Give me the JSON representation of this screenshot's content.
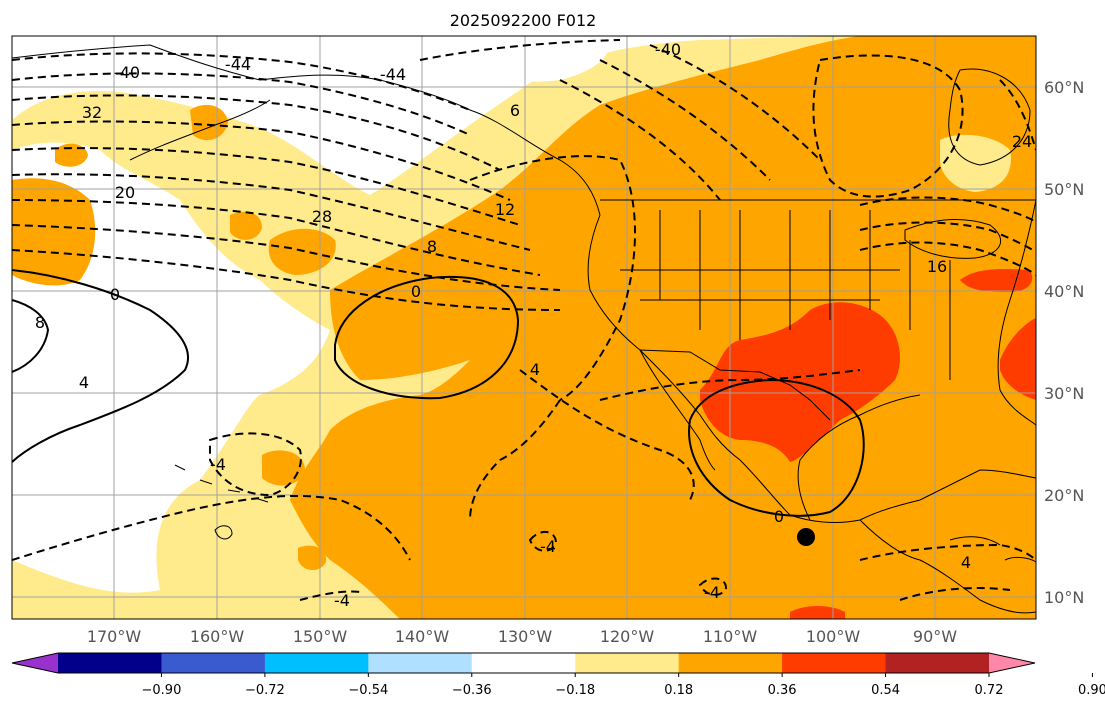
{
  "title": "2025092200 F012",
  "lat_labels": [
    "60°N",
    "50°N",
    "40°N",
    "30°N",
    "20°N",
    "10°N"
  ],
  "lon_labels": [
    "170°W",
    "160°W",
    "150°W",
    "140°W",
    "130°W",
    "120°W",
    "110°W",
    "100°W",
    "90°W"
  ],
  "colorbar": {
    "colors": [
      "#9932cc",
      "#00008b",
      "#3a5bd0",
      "#00bfff",
      "#b0e0ff",
      "#ffffff",
      "#ffeb8c",
      "#ffa500",
      "#ff3c00",
      "#b22222",
      "#ff88aa"
    ],
    "tick_labels": [
      "−0.90",
      "−0.72",
      "−0.54",
      "−0.36",
      "−0.18",
      "0.18",
      "0.36",
      "0.54",
      "0.72",
      "0.90"
    ]
  },
  "contour_labels": {
    "l_neg44_a": "-44",
    "l_neg40_b": "-40",
    "l_neg40_a": "-40",
    "l_neg44_b": "-44",
    "l_32": "32",
    "l_20": "20",
    "l_28": "28",
    "l_12": "12",
    "l_8a": "8",
    "l_0a": "0",
    "l_0b": "0",
    "l_8b": "8",
    "l_4a": "4",
    "l_4b": "4",
    "l_neg4a": "-4",
    "l_neg4b": "-4",
    "l_4c": "4",
    "l_neg4c": "-4",
    "l_neg4d": "-4",
    "l_0c": "0",
    "l_16": "16",
    "l_24": "24",
    "l_6": "6"
  }
}
